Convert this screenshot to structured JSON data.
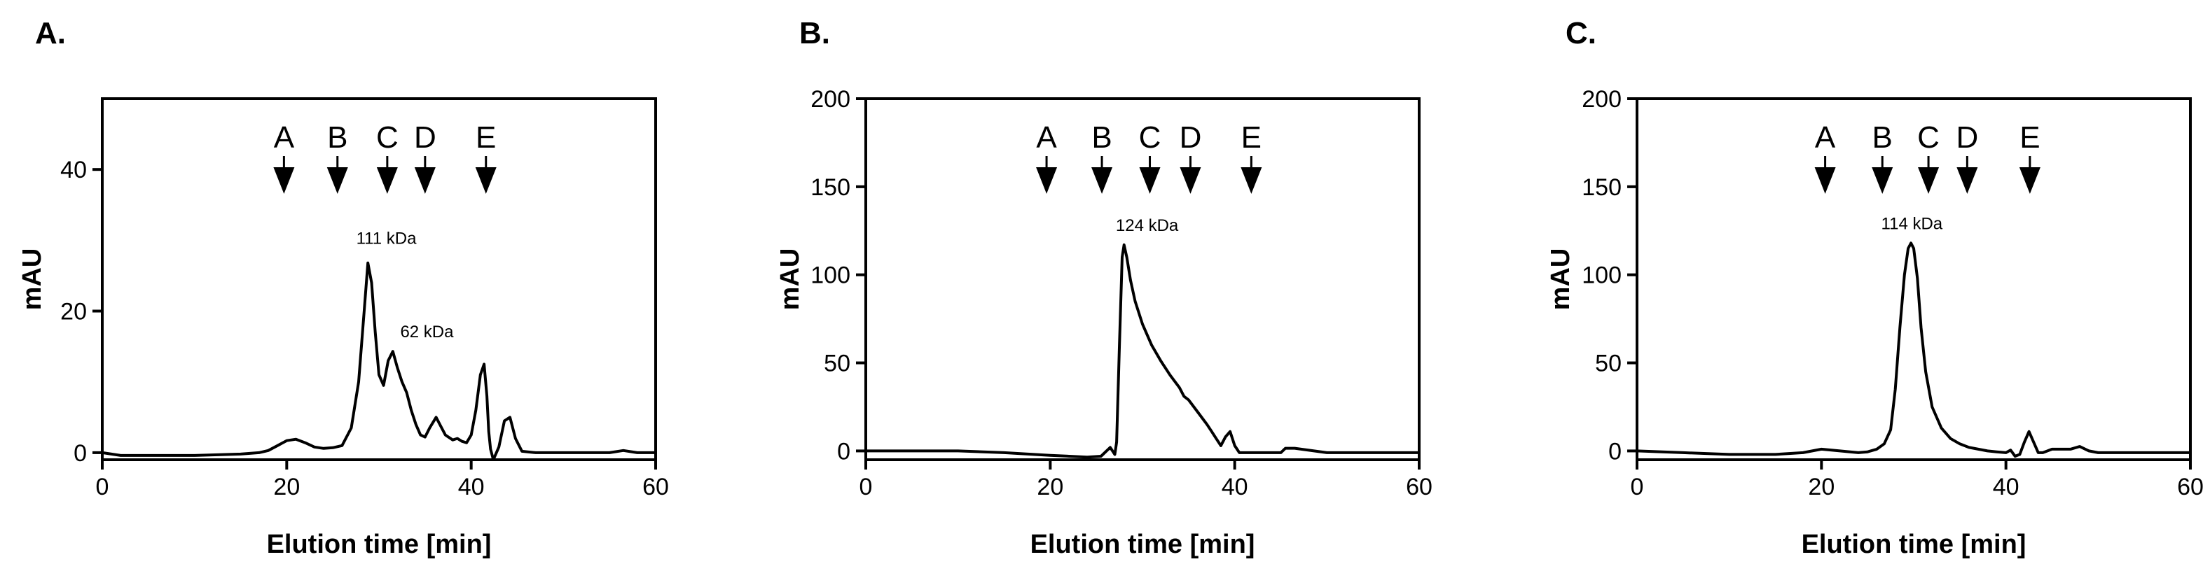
{
  "chart_data": [
    {
      "type": "line",
      "panel": "A.",
      "xlabel": "Elution time [min]",
      "ylabel": "mAU",
      "xlim": [
        0,
        60
      ],
      "ylim": [
        -1,
        50
      ],
      "xticks": [
        0,
        20,
        40,
        60
      ],
      "yticks": [
        0,
        20,
        40
      ],
      "grid": false,
      "markers": [
        {
          "label": "A",
          "x": 19.7
        },
        {
          "label": "B",
          "x": 25.5
        },
        {
          "label": "C",
          "x": 30.9
        },
        {
          "label": "D",
          "x": 35.0
        },
        {
          "label": "E",
          "x": 41.6
        }
      ],
      "annotations": [
        {
          "text": "111 kDa",
          "x": 30.8,
          "y": 29.5
        },
        {
          "text": "62 kDa",
          "x": 35.2,
          "y": 16.3
        }
      ],
      "series": [
        {
          "x": [
            0,
            2,
            10,
            15,
            17,
            18,
            19,
            20,
            21,
            22,
            23,
            24,
            25,
            26,
            27,
            27.8,
            28.4,
            28.8,
            29.2,
            29.6,
            30.0,
            30.5,
            31.0,
            31.5,
            32.0,
            32.5,
            33.0,
            33.5,
            34.0,
            34.5,
            35.0,
            35.5,
            36.2,
            36.8,
            37.2,
            38.0,
            38.5,
            39.0,
            39.5,
            40.0,
            40.5,
            41.0,
            41.4,
            41.7,
            41.9,
            42.1,
            42.4,
            43.0,
            43.6,
            44.2,
            44.8,
            45.5,
            47,
            50,
            55,
            56.5,
            58,
            60
          ],
          "y": [
            0,
            -0.4,
            -0.4,
            -0.2,
            0,
            0.3,
            1.0,
            1.7,
            1.9,
            1.4,
            0.8,
            0.6,
            0.7,
            1.0,
            3.5,
            10,
            20,
            26.8,
            24,
            17,
            11,
            9.5,
            13,
            14.3,
            12,
            10,
            8.5,
            6,
            4,
            2.5,
            2.2,
            3.5,
            5,
            3.5,
            2.5,
            1.8,
            2.0,
            1.6,
            1.4,
            2.5,
            6,
            11,
            12.5,
            8,
            3,
            0.5,
            -1,
            0.8,
            4.5,
            5,
            2,
            0.2,
            0,
            0,
            0,
            0.3,
            0,
            0
          ]
        }
      ]
    },
    {
      "type": "line",
      "panel": "B.",
      "xlabel": "Elution time [min]",
      "ylabel": "mAU",
      "xlim": [
        0,
        60
      ],
      "ylim": [
        -5,
        200
      ],
      "xticks": [
        0,
        20,
        40,
        60
      ],
      "yticks": [
        0,
        50,
        100,
        150,
        200
      ],
      "grid": false,
      "markers": [
        {
          "label": "A",
          "x": 19.6
        },
        {
          "label": "B",
          "x": 25.6
        },
        {
          "label": "C",
          "x": 30.8
        },
        {
          "label": "D",
          "x": 35.2
        },
        {
          "label": "E",
          "x": 41.8
        }
      ],
      "annotations": [
        {
          "text": "124 kDa",
          "x": 30.5,
          "y": 125
        }
      ],
      "series": [
        {
          "x": [
            0,
            5,
            10,
            15,
            20,
            24,
            25.5,
            26.5,
            27.0,
            27.2,
            27.5,
            27.8,
            28.0,
            28.3,
            28.7,
            29.2,
            30,
            31,
            32,
            33,
            34,
            34.5,
            35,
            36,
            37,
            37.5,
            38,
            38.5,
            39.0,
            39.5,
            40.0,
            40.5,
            41,
            44,
            45,
            45.5,
            46.5,
            50,
            60
          ],
          "y": [
            0,
            0,
            0,
            -1,
            -2.5,
            -3.5,
            -3,
            2,
            -2,
            5,
            60,
            110,
            117,
            110,
            97,
            85,
            72,
            60,
            51,
            43,
            36,
            31,
            29,
            22,
            15,
            11,
            7,
            3,
            8,
            11,
            3,
            -1,
            -1,
            -1,
            -1,
            1.5,
            1.5,
            -1,
            -1
          ]
        }
      ]
    },
    {
      "type": "line",
      "panel": "C.",
      "xlabel": "Elution time [min]",
      "ylabel": "mAU",
      "xlim": [
        0,
        60
      ],
      "ylim": [
        -5,
        200
      ],
      "xticks": [
        0,
        20,
        40,
        60
      ],
      "yticks": [
        0,
        50,
        100,
        150,
        200
      ],
      "grid": false,
      "markers": [
        {
          "label": "A",
          "x": 20.4
        },
        {
          "label": "B",
          "x": 26.6
        },
        {
          "label": "C",
          "x": 31.6
        },
        {
          "label": "D",
          "x": 35.8
        },
        {
          "label": "E",
          "x": 42.6
        }
      ],
      "annotations": [
        {
          "text": "114 kDa",
          "x": 29.8,
          "y": 126
        }
      ],
      "series": [
        {
          "x": [
            0,
            5,
            10,
            15,
            18,
            20,
            22,
            24,
            25,
            26,
            26.8,
            27.5,
            28.0,
            28.5,
            29.0,
            29.4,
            29.7,
            30.0,
            30.4,
            30.8,
            31.3,
            32,
            33,
            34,
            35,
            36,
            37,
            38,
            39,
            40.0,
            40.5,
            41,
            41.5,
            42.0,
            42.5,
            43.0,
            43.5,
            44,
            45,
            46,
            47,
            48,
            49,
            50,
            55,
            60
          ],
          "y": [
            0,
            -1,
            -2,
            -2,
            -1,
            1,
            0,
            -1,
            -0.5,
            1,
            4,
            12,
            35,
            70,
            100,
            115,
            118,
            115,
            98,
            70,
            45,
            25,
            13,
            7,
            4,
            2,
            1,
            0,
            -0.5,
            -1,
            0.5,
            -3,
            -2,
            5,
            11,
            5,
            -1,
            -1,
            1,
            1,
            1,
            2.5,
            0,
            -1,
            -1,
            -1
          ]
        }
      ]
    }
  ]
}
